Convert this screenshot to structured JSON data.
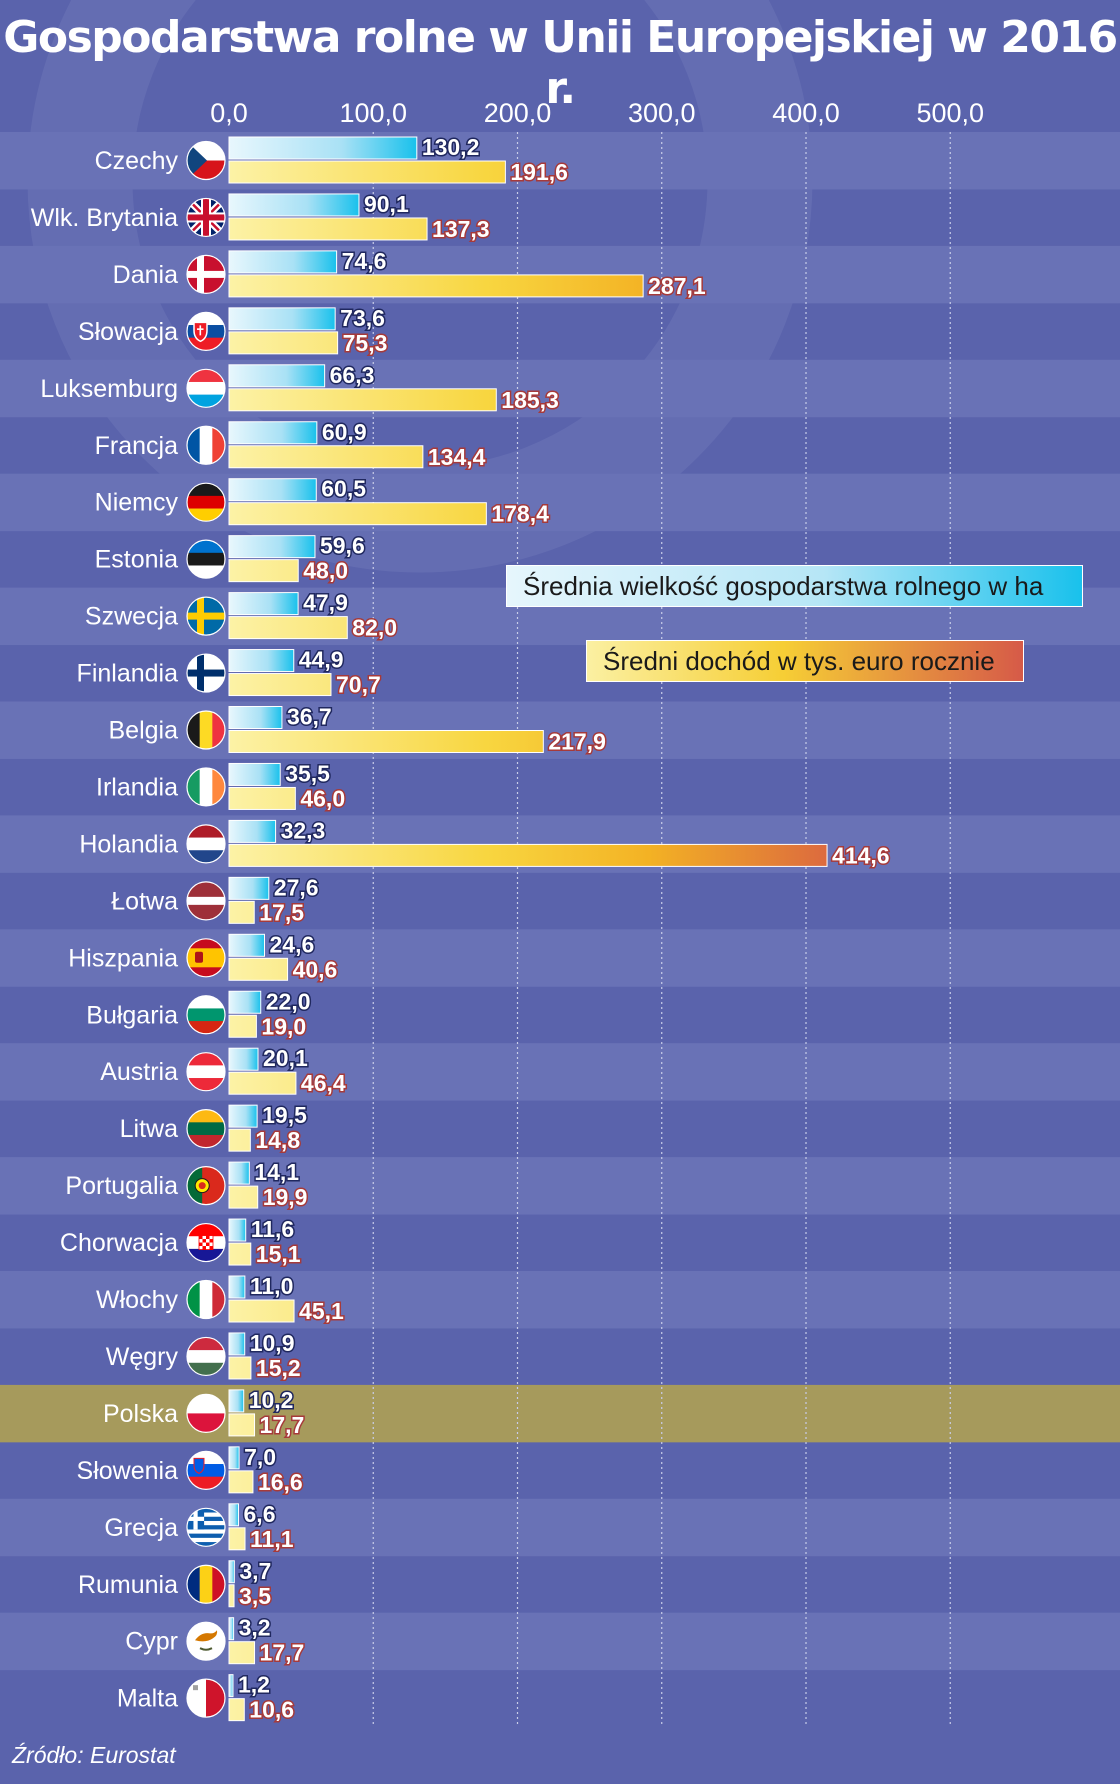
{
  "title": "Gospodarstwa rolne w Unii Europejskiej w 2016 r.",
  "source": "Źródło: Eurostat",
  "legend": {
    "size": "Średnia wielkość gospodarstwa rolnego w ha",
    "income": "Średni dochód w tys. euro rocznie"
  },
  "colors": {
    "background": "#5a63ac",
    "band_light": "#6972b6",
    "highlight_row": "#a69a5c",
    "size_bar": "#19c1ec",
    "income_bar": "#f6c32e",
    "income_bar_high": "#d24a4a",
    "income_label": "#a63a3a"
  },
  "chart_data": {
    "type": "bar",
    "orientation": "horizontal",
    "title": "Gospodarstwa rolne w Unii Europejskiej w 2016 r.",
    "xlim": [
      0,
      500
    ],
    "ticks": [
      "0,0",
      "100,0",
      "200,0",
      "300,0",
      "400,0",
      "500,0"
    ],
    "tick_values": [
      0,
      100,
      200,
      300,
      400,
      500
    ],
    "grid": "vertical dotted",
    "legend_position": "right, middle",
    "highlighted_category": "Polska",
    "categories": [
      "Czechy",
      "Wlk. Brytania",
      "Dania",
      "Słowacja",
      "Luksemburg",
      "Francja",
      "Niemcy",
      "Estonia",
      "Szwecja",
      "Finlandia",
      "Belgia",
      "Irlandia",
      "Holandia",
      "Łotwa",
      "Hiszpania",
      "Bułgaria",
      "Austria",
      "Litwa",
      "Portugalia",
      "Chorwacja",
      "Włochy",
      "Węgry",
      "Polska",
      "Słowenia",
      "Grecja",
      "Rumunia",
      "Cypr",
      "Malta"
    ],
    "flag_icons": [
      "flag-cz-icon",
      "flag-gb-icon",
      "flag-dk-icon",
      "flag-sk-icon",
      "flag-lu-icon",
      "flag-fr-icon",
      "flag-de-icon",
      "flag-ee-icon",
      "flag-se-icon",
      "flag-fi-icon",
      "flag-be-icon",
      "flag-ie-icon",
      "flag-nl-icon",
      "flag-lv-icon",
      "flag-es-icon",
      "flag-bg-icon",
      "flag-at-icon",
      "flag-lt-icon",
      "flag-pt-icon",
      "flag-hr-icon",
      "flag-it-icon",
      "flag-hu-icon",
      "flag-pl-icon",
      "flag-si-icon",
      "flag-gr-icon",
      "flag-ro-icon",
      "flag-cy-icon",
      "flag-mt-icon"
    ],
    "series": [
      {
        "name": "Średnia wielkość gospodarstwa rolnego w ha",
        "values": [
          130.2,
          90.1,
          74.6,
          73.6,
          66.3,
          60.9,
          60.5,
          59.6,
          47.9,
          44.9,
          36.7,
          35.5,
          32.3,
          27.6,
          24.6,
          22.0,
          20.1,
          19.5,
          14.1,
          11.6,
          11.0,
          10.9,
          10.2,
          7.0,
          6.6,
          3.7,
          3.2,
          1.2
        ],
        "labels": [
          "130,2",
          "90,1",
          "74,6",
          "73,6",
          "66,3",
          "60,9",
          "60,5",
          "59,6",
          "47,9",
          "44,9",
          "36,7",
          "35,5",
          "32,3",
          "27,6",
          "24,6",
          "22,0",
          "20,1",
          "19,5",
          "14,1",
          "11,6",
          "11,0",
          "10,9",
          "10,2",
          "7,0",
          "6,6",
          "3,7",
          "3,2",
          "1,2"
        ]
      },
      {
        "name": "Średni dochód w tys. euro rocznie",
        "values": [
          191.6,
          137.3,
          287.1,
          75.3,
          185.3,
          134.4,
          178.4,
          48.0,
          82.0,
          70.7,
          217.9,
          46.0,
          414.6,
          17.5,
          40.6,
          19.0,
          46.4,
          14.8,
          19.9,
          15.1,
          45.1,
          15.2,
          17.7,
          16.6,
          11.1,
          3.5,
          17.7,
          10.6
        ],
        "labels": [
          "191,6",
          "137,3",
          "287,1",
          "75,3",
          "185,3",
          "134,4",
          "178,4",
          "48,0",
          "82,0",
          "70,7",
          "217,9",
          "46,0",
          "414,6",
          "17,5",
          "40,6",
          "19,0",
          "46,4",
          "14,8",
          "19,9",
          "15,1",
          "45,1",
          "15,2",
          "17,7",
          "16,6",
          "11,1",
          "3,5",
          "17,7",
          "10,6"
        ]
      }
    ]
  }
}
